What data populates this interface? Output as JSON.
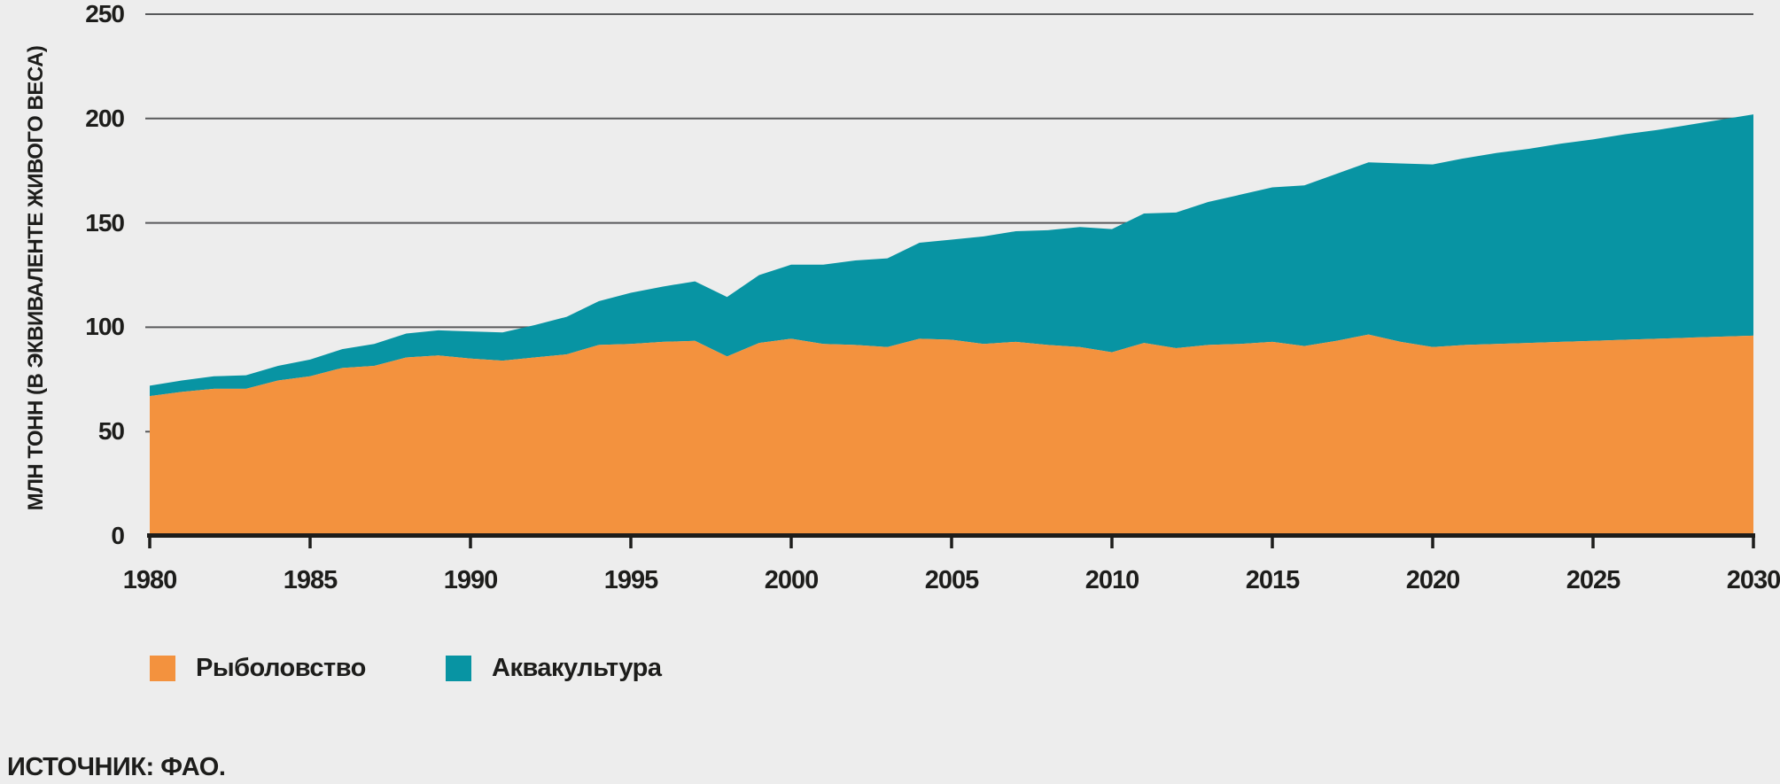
{
  "chart_data": {
    "type": "area",
    "stacked": true,
    "title": "",
    "xlabel": "",
    "ylabel": "МЛН ТОНН (В ЭКВИВАЛЕНТЕ ЖИВОГО ВЕСА)",
    "xlim": [
      1980,
      2030
    ],
    "ylim": [
      0,
      250
    ],
    "xticks": [
      1980,
      1985,
      1990,
      1995,
      2000,
      2005,
      2010,
      2015,
      2020,
      2025,
      2030
    ],
    "yticks": [
      0,
      50,
      100,
      150,
      200,
      250
    ],
    "grid": "horizontal",
    "legend_position": "bottom-left",
    "background_color": "#EDEDED",
    "gridline_color": "#58595B",
    "axis_color": "#1D1D1B",
    "years": [
      1980,
      1981,
      1982,
      1983,
      1984,
      1985,
      1986,
      1987,
      1988,
      1989,
      1990,
      1991,
      1992,
      1993,
      1994,
      1995,
      1996,
      1997,
      1998,
      1999,
      2000,
      2001,
      2002,
      2003,
      2004,
      2005,
      2006,
      2007,
      2008,
      2009,
      2010,
      2011,
      2012,
      2013,
      2014,
      2015,
      2016,
      2017,
      2018,
      2019,
      2020,
      2021,
      2022,
      2023,
      2024,
      2025,
      2026,
      2027,
      2028,
      2029,
      2030
    ],
    "series": [
      {
        "name": "Рыболовство",
        "color": "#F3923E",
        "values": [
          67,
          69,
          70.5,
          70.5,
          74.5,
          76.5,
          80.5,
          81.5,
          85.5,
          86.5,
          85,
          84,
          85.5,
          87,
          91.5,
          92,
          93,
          93.5,
          86,
          92.5,
          94.5,
          92,
          91.5,
          90.5,
          94.5,
          94,
          92,
          93,
          91.5,
          90.5,
          88,
          92.5,
          90,
          91.5,
          92,
          93,
          91,
          93.5,
          96.5,
          93,
          90.5,
          91.5,
          92,
          92.5,
          93,
          93.5,
          94,
          94.5,
          95,
          95.5,
          96
        ]
      },
      {
        "name": "Аквакультура",
        "color": "#0894A3",
        "values": [
          5,
          5.5,
          6,
          6.5,
          7,
          8,
          9,
          10.5,
          11.5,
          12,
          13,
          13.5,
          15.5,
          18,
          21,
          24.5,
          26.5,
          28.5,
          28.5,
          32.5,
          35.5,
          38,
          40.5,
          42.5,
          46,
          48,
          51.5,
          53,
          55,
          57.5,
          59,
          62,
          65,
          68.5,
          71.5,
          74,
          77,
          80,
          82.5,
          85.5,
          87.5,
          89.5,
          91.5,
          93,
          95,
          96.5,
          98.5,
          100,
          102,
          104,
          106
        ]
      }
    ]
  },
  "axis": {
    "y_title": "МЛН ТОНН (В ЭКВИВАЛЕНТЕ ЖИВОГО ВЕСА)"
  },
  "legend": {
    "items": [
      {
        "label": "Рыболовство",
        "color": "#F3923E"
      },
      {
        "label": "Аквакультура",
        "color": "#0894A3"
      }
    ]
  },
  "source": "ИСТОЧНИК: ФАО."
}
